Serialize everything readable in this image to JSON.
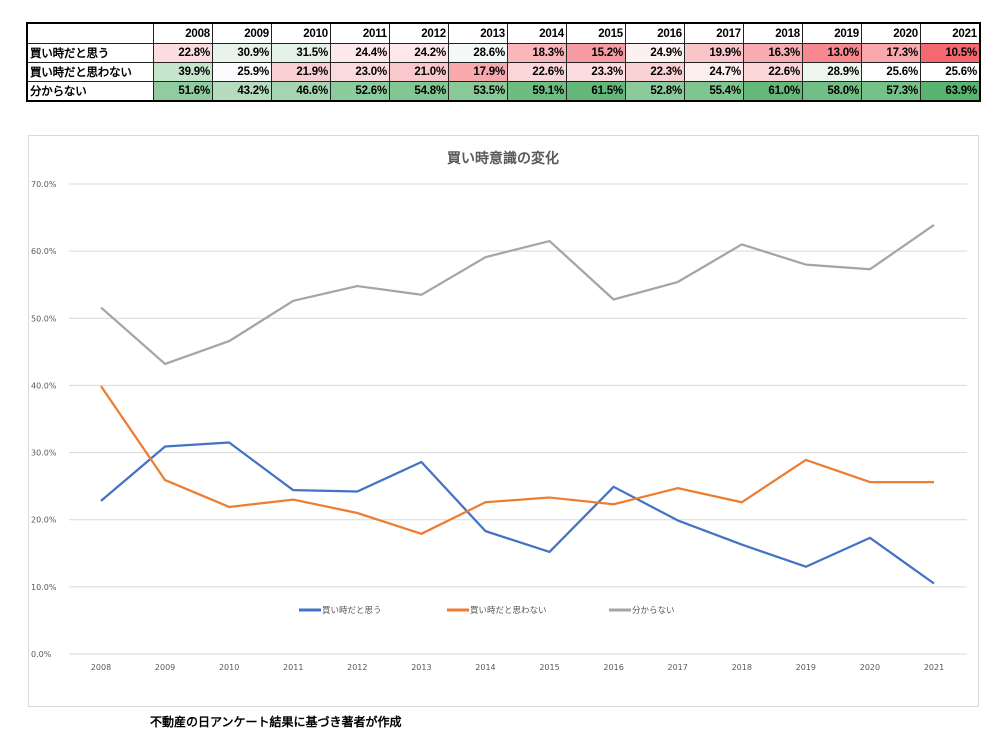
{
  "table": {
    "corner": "",
    "years": [
      "2008",
      "2009",
      "2010",
      "2011",
      "2012",
      "2013",
      "2014",
      "2015",
      "2016",
      "2017",
      "2018",
      "2019",
      "2020",
      "2021"
    ],
    "rows": [
      {
        "label": "買い時だと思う",
        "values": [
          "22.8%",
          "30.9%",
          "31.5%",
          "24.4%",
          "24.2%",
          "28.6%",
          "18.3%",
          "15.2%",
          "24.9%",
          "19.9%",
          "16.3%",
          "13.0%",
          "17.3%",
          "10.5%"
        ],
        "colors": [
          "#fbdde0",
          "#e8f4ea",
          "#e4f2e7",
          "#fce9eb",
          "#fce8ea",
          "#f3f9f4",
          "#f9b6bb",
          "#f79ca2",
          "#fdf0f1",
          "#f9c5c9",
          "#f8acb1",
          "#f68990",
          "#f8a9ae",
          "#f5686f"
        ]
      },
      {
        "label": "買い時だと思わない",
        "values": [
          "39.9%",
          "25.9%",
          "21.9%",
          "23.0%",
          "21.0%",
          "17.9%",
          "22.6%",
          "23.3%",
          "22.3%",
          "24.7%",
          "22.6%",
          "28.9%",
          "25.6%",
          "25.6%"
        ],
        "colors": [
          "#c6e5cd",
          "#fcfcfe",
          "#f9cfd3",
          "#fbdadd",
          "#f9c8cc",
          "#f7a9ae",
          "#fad6d9",
          "#fbdcdf",
          "#fad2d5",
          "#fdeff0",
          "#fad6d9",
          "#eef6f0",
          "#fefefe",
          "#fefefe"
        ]
      },
      {
        "label": "分からない",
        "values": [
          "51.6%",
          "43.2%",
          "46.6%",
          "52.6%",
          "54.8%",
          "53.5%",
          "59.1%",
          "61.5%",
          "52.8%",
          "55.4%",
          "61.0%",
          "58.0%",
          "57.3%",
          "63.9%"
        ],
        "colors": [
          "#90cc9f",
          "#b4dcbd",
          "#a5d5b0",
          "#8ccb9b",
          "#82c693",
          "#88c997",
          "#6dbd81",
          "#63b879",
          "#8bca9a",
          "#7fc590",
          "#64b97a",
          "#71bf85",
          "#75c188",
          "#5ab471"
        ]
      }
    ]
  },
  "chart_data": {
    "type": "line",
    "title": "買い時意識の変化",
    "xlabel": "",
    "ylabel": "",
    "x": [
      "2008",
      "2009",
      "2010",
      "2011",
      "2012",
      "2013",
      "2014",
      "2015",
      "2016",
      "2017",
      "2018",
      "2019",
      "2020",
      "2021"
    ],
    "ylim": [
      0,
      70
    ],
    "yticks": [
      "0.0%",
      "10.0%",
      "20.0%",
      "30.0%",
      "40.0%",
      "50.0%",
      "60.0%",
      "70.0%"
    ],
    "grid": true,
    "legend_position": "bottom-inside",
    "series": [
      {
        "name": "買い時だと思う",
        "color": "#4472c4",
        "values": [
          22.8,
          30.9,
          31.5,
          24.4,
          24.2,
          28.6,
          18.3,
          15.2,
          24.9,
          19.9,
          16.3,
          13.0,
          17.3,
          10.5
        ]
      },
      {
        "name": "買い時だと思わない",
        "color": "#ed7d31",
        "values": [
          39.9,
          25.9,
          21.9,
          23.0,
          21.0,
          17.9,
          22.6,
          23.3,
          22.3,
          24.7,
          22.6,
          28.9,
          25.6,
          25.6
        ]
      },
      {
        "name": "分からない",
        "color": "#a5a5a5",
        "values": [
          51.6,
          43.2,
          46.6,
          52.6,
          54.8,
          53.5,
          59.1,
          61.5,
          52.8,
          55.4,
          61.0,
          58.0,
          57.3,
          63.9
        ]
      }
    ]
  },
  "caption": "不動産の日アンケート結果に基づき著者が作成"
}
